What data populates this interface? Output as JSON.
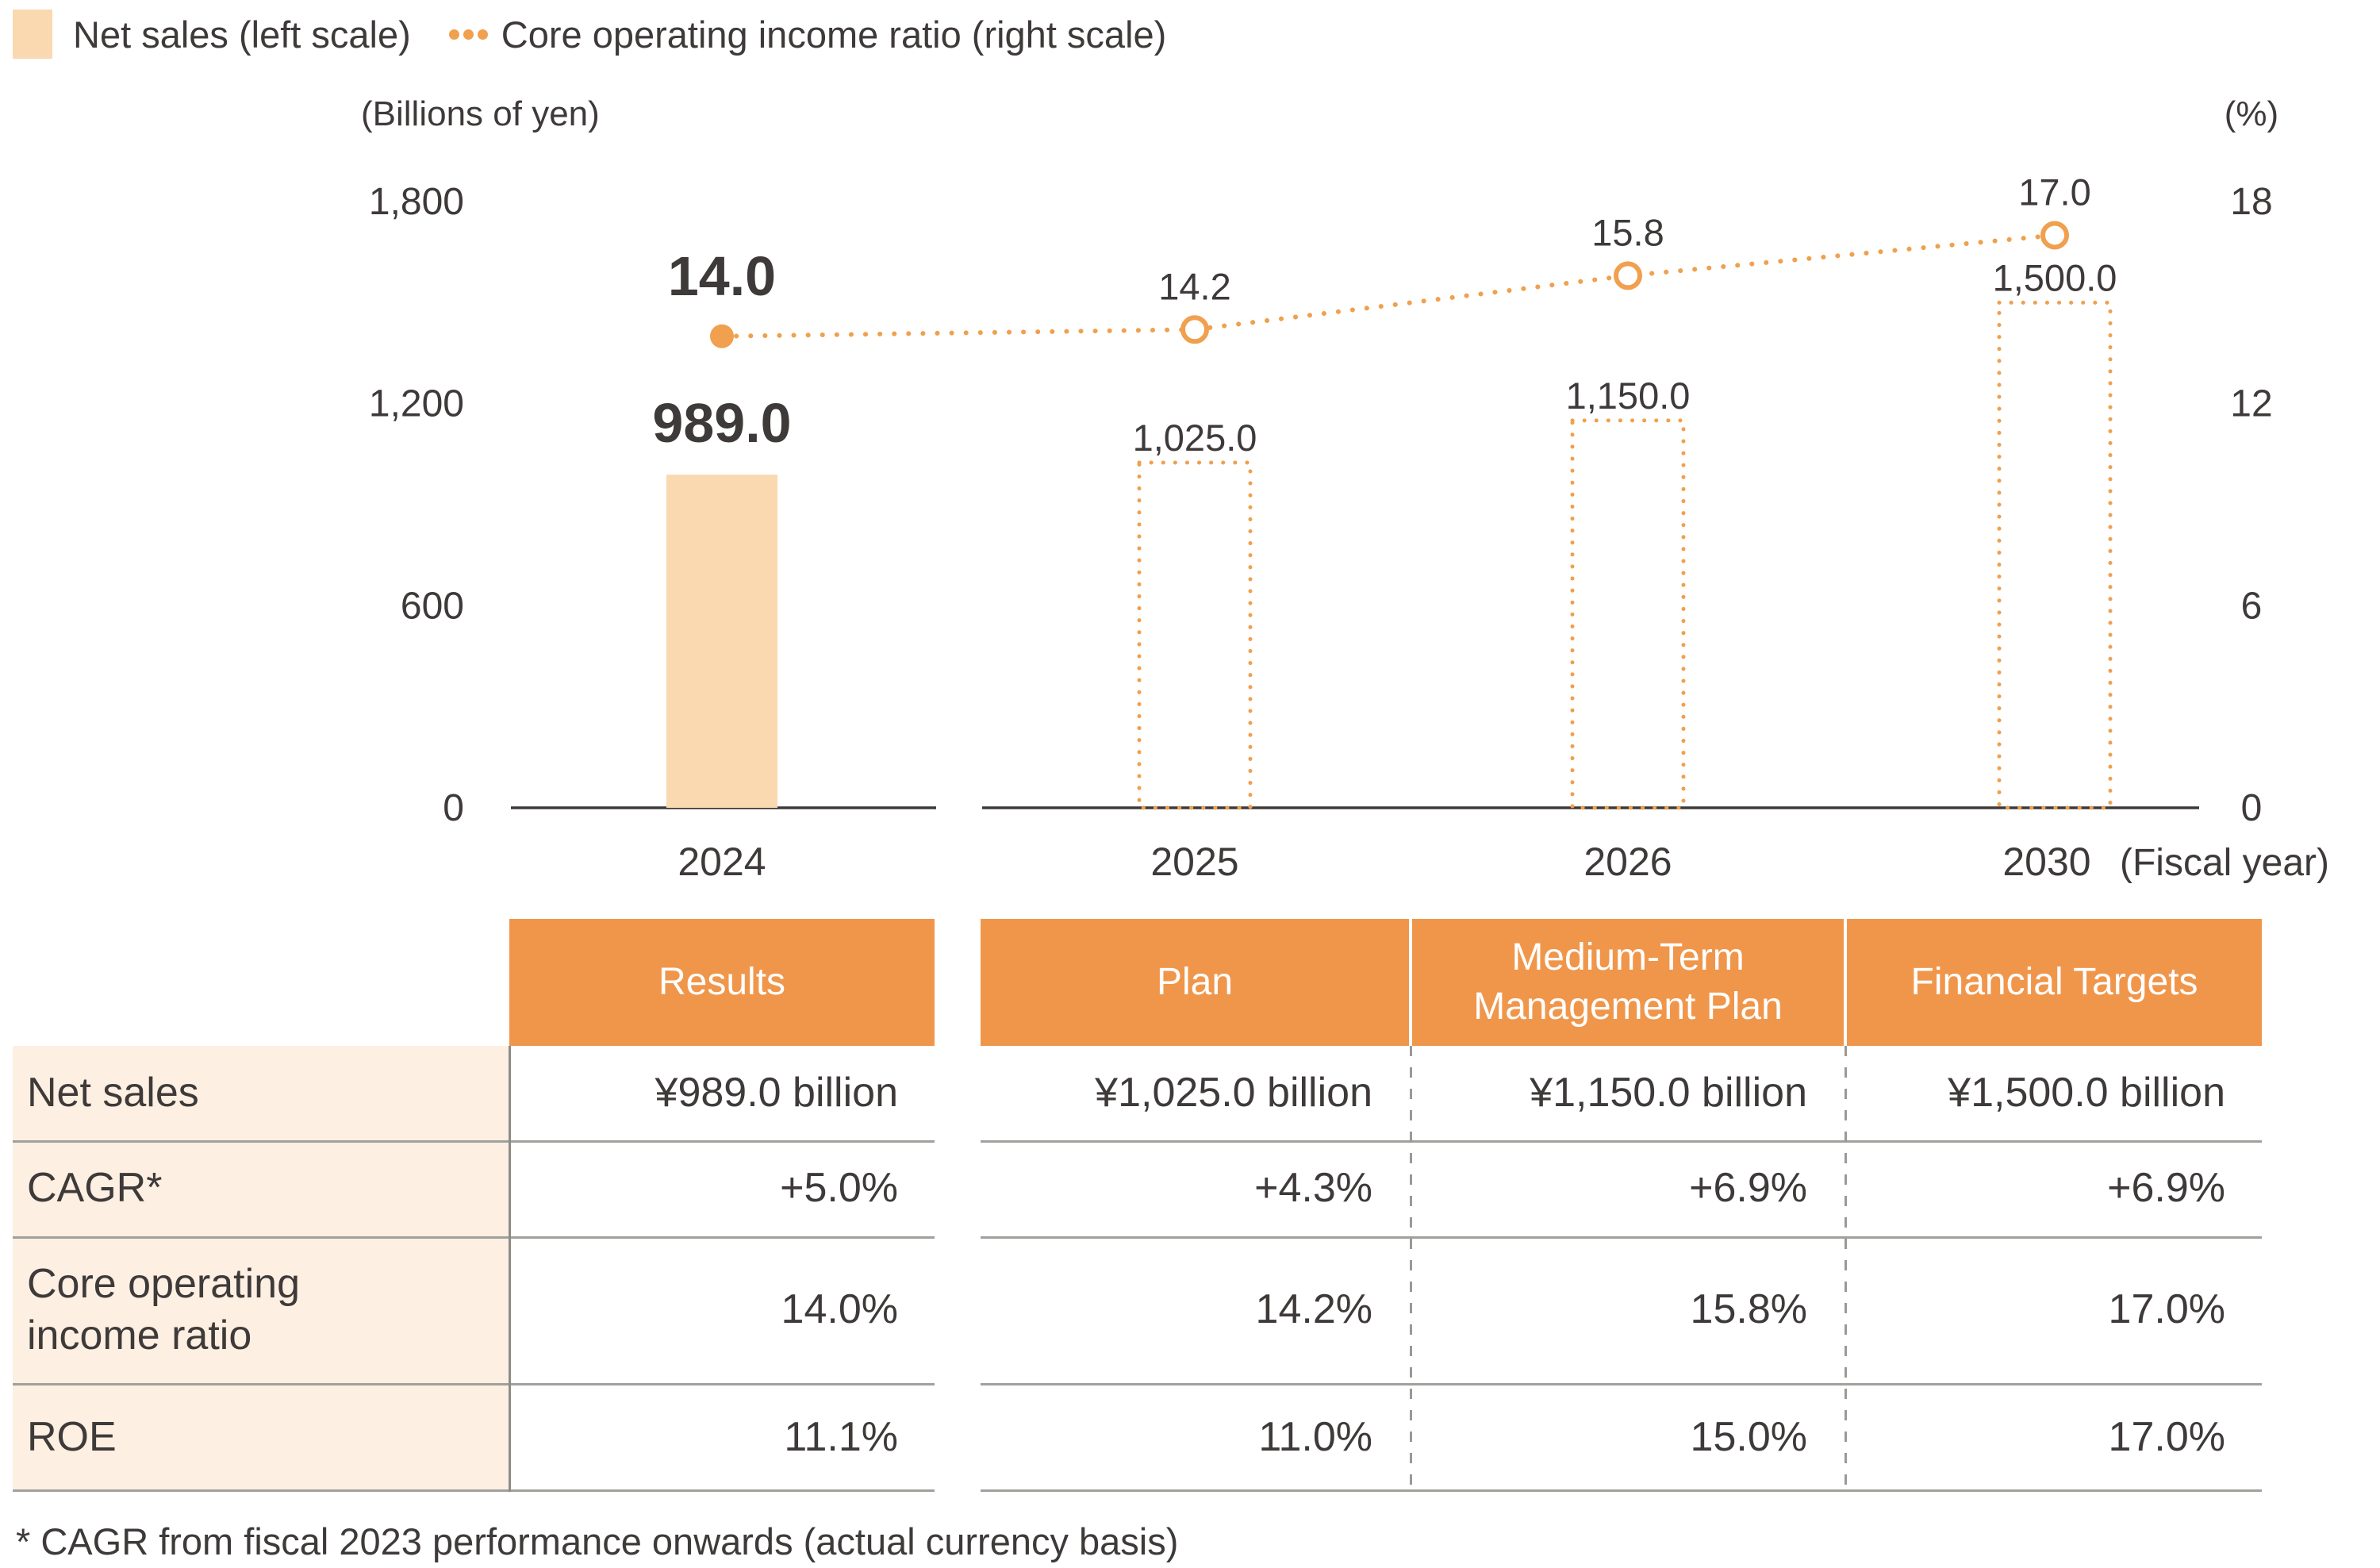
{
  "legend": {
    "items": [
      {
        "label": "Net sales (left scale)",
        "swatch": "bar-swatch"
      },
      {
        "label": "Core operating income ratio (right scale)",
        "swatch": "dotted-line-swatch"
      }
    ]
  },
  "chart_data": {
    "type": "combo",
    "categories": [
      "2024",
      "2025",
      "2026",
      "2030"
    ],
    "x_axis_suffix": "(Fiscal year)",
    "series": [
      {
        "name": "Net sales (left scale)",
        "type": "bar",
        "axis": "left",
        "values": [
          989.0,
          1025.0,
          1150.0,
          1500.0
        ],
        "labels": [
          "989.0",
          "1,025.0",
          "1,150.0",
          "1,500.0"
        ],
        "style": [
          "solid",
          "dotted",
          "dotted",
          "dotted"
        ]
      },
      {
        "name": "Core operating income ratio (right scale)",
        "type": "line",
        "axis": "right",
        "values": [
          14.0,
          14.2,
          15.8,
          17.0
        ],
        "labels": [
          "14.0",
          "14.2",
          "15.8",
          "17.0"
        ],
        "marker": [
          "filled",
          "open",
          "open",
          "open"
        ],
        "line_style": "dotted"
      }
    ],
    "left_axis": {
      "title": "(Billions of yen)",
      "range": [
        0,
        1800
      ],
      "ticks": [
        1800,
        1200,
        600,
        0
      ],
      "tick_labels": [
        "1,800",
        "1,200",
        "600",
        "0"
      ]
    },
    "right_axis": {
      "title": "(%)",
      "range": [
        0,
        18
      ],
      "ticks": [
        18,
        12,
        6,
        0
      ],
      "tick_labels": [
        "18",
        "12",
        "6",
        "0"
      ]
    },
    "grid": "off",
    "legend_position": "top-left"
  },
  "table": {
    "column_headers": [
      "Results",
      "Plan",
      "Medium-Term Management Plan",
      "Financial Targets"
    ],
    "rows": [
      {
        "label": "Net sales",
        "values": [
          "¥989.0 billion",
          "¥1,025.0 billion",
          "¥1,150.0 billion",
          "¥1,500.0 billion"
        ]
      },
      {
        "label": "CAGR*",
        "values": [
          "+5.0%",
          "+4.3%",
          "+6.9%",
          "+6.9%"
        ]
      },
      {
        "label": "Core operating income ratio",
        "values": [
          "14.0%",
          "14.2%",
          "15.8%",
          "17.0%"
        ]
      },
      {
        "label": "ROE",
        "values": [
          "11.1%",
          "11.0%",
          "15.0%",
          "17.0%"
        ]
      }
    ]
  },
  "footnote": "* CAGR from fiscal 2023 performance onwards (actual currency basis)",
  "colors": {
    "accent_orange": "#F0964B",
    "line_orange": "#F0A04E",
    "bar_fill": "#FAD8B0",
    "row_label_bg": "#FDEFE2",
    "text": "#3E3A39",
    "grid_gray": "#A2A09C"
  }
}
